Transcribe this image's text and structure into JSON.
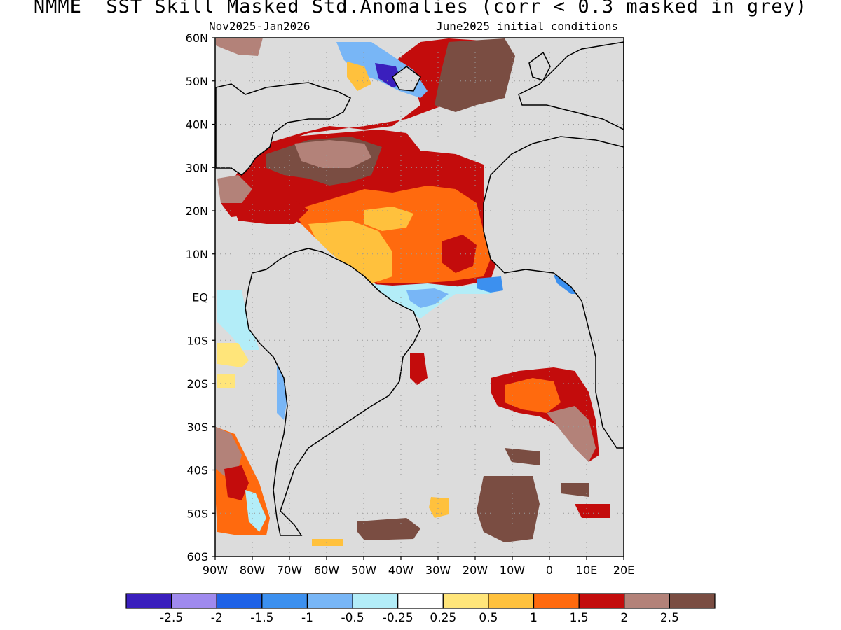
{
  "header": {
    "title": "NMME  SST Skill Masked Std.Anomalies (corr < 0.3 masked in grey)",
    "valid_period": "Nov2025-Jan2026",
    "initial_conditions": "June2025 initial conditions"
  },
  "map": {
    "lat_labels": [
      "60N",
      "50N",
      "40N",
      "30N",
      "20N",
      "10N",
      "EQ",
      "10S",
      "20S",
      "30S",
      "40S",
      "50S",
      "60S"
    ],
    "lon_labels": [
      "90W",
      "80W",
      "70W",
      "60W",
      "50W",
      "40W",
      "30W",
      "20W",
      "10W",
      "0",
      "10E",
      "20E"
    ],
    "lon_range": [
      -90,
      20
    ],
    "lat_range": [
      -60,
      60
    ],
    "mask_color": "#dcdcdc",
    "land_color": "#dcdcdc",
    "grid": "dotted"
  },
  "colorbar": {
    "colors": [
      "#3a1fbd",
      "#9f8aee",
      "#1f62e6",
      "#3c90ef",
      "#78b6f6",
      "#b3edf8",
      "#ffffff",
      "#ffe57a",
      "#ffc13d",
      "#ff6a0e",
      "#c30c0c",
      "#b38279",
      "#7a4d42"
    ],
    "labels": [
      "-2.5",
      "-2",
      "-1.5",
      "-1",
      "-0.5",
      "-0.25",
      "0.25",
      "0.5",
      "1",
      "1.5",
      "2",
      "2.5"
    ]
  },
  "anomaly_regions": [
    {
      "name": "tropical-north-atlantic",
      "level": 1.5
    },
    {
      "name": "subtropical-north-atlantic",
      "level": 2.5
    },
    {
      "name": "gulf-stream-region",
      "level": -2.5
    },
    {
      "name": "equatorial-atlantic",
      "level": -1
    },
    {
      "name": "southeast-atlantic",
      "level": 2
    },
    {
      "name": "southeast-pacific",
      "level": 1.5
    }
  ]
}
